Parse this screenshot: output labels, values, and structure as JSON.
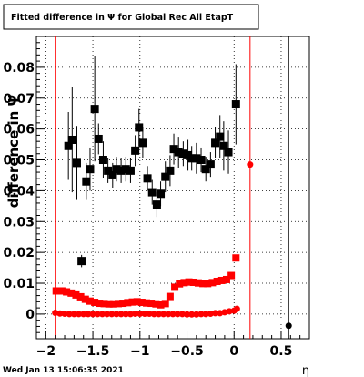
{
  "title": "Fitted difference in  Ψ  for Global Rec All EtapT",
  "timestamp": "Wed Jan 13 15:06:35 2021",
  "chart_data": {
    "type": "scatter",
    "xlabel": "η",
    "ylabel": "difference in Ψ",
    "xlim": [
      -2.1,
      0.8
    ],
    "ylim": [
      -0.008,
      0.09
    ],
    "grid": true,
    "legend": "none",
    "x_ticks": [
      {
        "v": -2,
        "label": "−2"
      },
      {
        "v": -1.5,
        "label": "−1.5"
      },
      {
        "v": -1,
        "label": "−1"
      },
      {
        "v": -0.5,
        "label": "−0.5"
      },
      {
        "v": 0,
        "label": "0"
      },
      {
        "v": 0.5,
        "label": "0.5"
      }
    ],
    "y_ticks": [
      {
        "v": 0,
        "label": "0"
      },
      {
        "v": 0.01,
        "label": "0.01"
      },
      {
        "v": 0.02,
        "label": "0.02"
      },
      {
        "v": 0.03,
        "label": "0.03"
      },
      {
        "v": 0.04,
        "label": "0.04"
      },
      {
        "v": 0.05,
        "label": "0.05"
      },
      {
        "v": 0.06,
        "label": "0.06"
      },
      {
        "v": 0.07,
        "label": "0.07"
      },
      {
        "v": 0.08,
        "label": "0.08"
      }
    ],
    "vertical_lines": [
      {
        "x": -1.9,
        "color": "#ff0000"
      },
      {
        "x": 0.17,
        "color": "#ff0000"
      },
      {
        "x": 0.58,
        "color": "#000000"
      }
    ],
    "series": [
      {
        "marker": "square",
        "color": "#000000",
        "size": 9,
        "points": [
          [
            -1.76,
            0.0545,
            0.011
          ],
          [
            -1.72,
            0.0565,
            0.017
          ],
          [
            -1.67,
            0.049,
            0.012
          ],
          [
            -1.62,
            0.0172,
            0.002
          ],
          [
            -1.57,
            0.043,
            0.006
          ],
          [
            -1.53,
            0.047,
            0.007
          ],
          [
            -1.48,
            0.0665,
            0.017
          ],
          [
            -1.44,
            0.0568,
            0.005
          ],
          [
            -1.39,
            0.05,
            0.006
          ],
          [
            -1.34,
            0.0465,
            0.004
          ],
          [
            -1.29,
            0.045,
            0.004
          ],
          [
            -1.25,
            0.047,
            0.004
          ],
          [
            -1.2,
            0.0465,
            0.004
          ],
          [
            -1.15,
            0.047,
            0.004
          ],
          [
            -1.1,
            0.0465,
            0.004
          ],
          [
            -1.05,
            0.053,
            0.005
          ],
          [
            -1.01,
            0.0605,
            0.006
          ],
          [
            -0.97,
            0.0555,
            0.005
          ],
          [
            -0.92,
            0.044,
            0.004
          ],
          [
            -0.87,
            0.0395,
            0.004
          ],
          [
            -0.82,
            0.0355,
            0.004
          ],
          [
            -0.78,
            0.039,
            0.004
          ],
          [
            -0.73,
            0.0445,
            0.005
          ],
          [
            -0.68,
            0.0465,
            0.005
          ],
          [
            -0.64,
            0.0535,
            0.005
          ],
          [
            -0.59,
            0.0525,
            0.005
          ],
          [
            -0.54,
            0.052,
            0.004
          ],
          [
            -0.49,
            0.0515,
            0.005
          ],
          [
            -0.45,
            0.0505,
            0.004
          ],
          [
            -0.4,
            0.0505,
            0.005
          ],
          [
            -0.35,
            0.05,
            0.004
          ],
          [
            -0.3,
            0.047,
            0.004
          ],
          [
            -0.25,
            0.0485,
            0.004
          ],
          [
            -0.2,
            0.0555,
            0.005
          ],
          [
            -0.15,
            0.0575,
            0.007
          ],
          [
            -0.11,
            0.0545,
            0.008
          ],
          [
            -0.06,
            0.0525,
            0.007
          ],
          [
            0.02,
            0.068,
            0.013
          ]
        ]
      },
      {
        "marker": "square",
        "color": "#ff0000",
        "size": 8,
        "points": [
          [
            -1.89,
            0.0075
          ],
          [
            -1.83,
            0.0075
          ],
          [
            -1.78,
            0.0072
          ],
          [
            -1.73,
            0.0068
          ],
          [
            -1.68,
            0.0062
          ],
          [
            -1.63,
            0.0056
          ],
          [
            -1.58,
            0.0048
          ],
          [
            -1.53,
            0.0042
          ],
          [
            -1.48,
            0.0038
          ],
          [
            -1.43,
            0.0035
          ],
          [
            -1.38,
            0.0034
          ],
          [
            -1.33,
            0.0033
          ],
          [
            -1.28,
            0.0033
          ],
          [
            -1.23,
            0.0034
          ],
          [
            -1.18,
            0.0035
          ],
          [
            -1.13,
            0.0037
          ],
          [
            -1.08,
            0.0039
          ],
          [
            -1.03,
            0.004
          ],
          [
            -0.98,
            0.0038
          ],
          [
            -0.93,
            0.0036
          ],
          [
            -0.88,
            0.0035
          ],
          [
            -0.83,
            0.0033
          ],
          [
            -0.78,
            0.003
          ],
          [
            -0.73,
            0.0034
          ],
          [
            -0.68,
            0.0057
          ],
          [
            -0.63,
            0.0087
          ],
          [
            -0.58,
            0.0098
          ],
          [
            -0.53,
            0.0102
          ],
          [
            -0.48,
            0.0104
          ],
          [
            -0.43,
            0.0103
          ],
          [
            -0.38,
            0.0101
          ],
          [
            -0.33,
            0.0099
          ],
          [
            -0.28,
            0.0099
          ],
          [
            -0.23,
            0.0102
          ],
          [
            -0.18,
            0.0106
          ],
          [
            -0.13,
            0.0109
          ],
          [
            -0.08,
            0.0112
          ],
          [
            -0.03,
            0.0125
          ],
          [
            0.02,
            0.0182
          ]
        ]
      },
      {
        "marker": "circle",
        "color": "#ff0000",
        "size": 7,
        "points": [
          [
            -1.9,
            0.0004
          ],
          [
            -1.85,
            0.0002
          ],
          [
            -1.8,
            0.0001
          ],
          [
            -1.75,
            0.0
          ],
          [
            -1.7,
            0.0
          ],
          [
            -1.65,
            0.0
          ],
          [
            -1.6,
            0.0
          ],
          [
            -1.55,
            0.0
          ],
          [
            -1.5,
            0.0
          ],
          [
            -1.45,
            0.0
          ],
          [
            -1.4,
            0.0
          ],
          [
            -1.35,
            0.0
          ],
          [
            -1.3,
            0.0
          ],
          [
            -1.25,
            0.0
          ],
          [
            -1.2,
            0.0
          ],
          [
            -1.15,
            0.0
          ],
          [
            -1.1,
            0.0
          ],
          [
            -1.05,
            0.0001
          ],
          [
            -1.0,
            0.0001
          ],
          [
            -0.95,
            0.0001
          ],
          [
            -0.9,
            0.0001
          ],
          [
            -0.85,
            0.0
          ],
          [
            -0.8,
            0.0
          ],
          [
            -0.75,
            0.0
          ],
          [
            -0.7,
            0.0
          ],
          [
            -0.65,
            0.0
          ],
          [
            -0.6,
            0.0
          ],
          [
            -0.55,
            0.0
          ],
          [
            -0.5,
            -0.0001
          ],
          [
            -0.45,
            -0.0001
          ],
          [
            -0.4,
            -0.0001
          ],
          [
            -0.35,
            0.0
          ],
          [
            -0.3,
            0.0
          ],
          [
            -0.25,
            0.0001
          ],
          [
            -0.2,
            0.0003
          ],
          [
            -0.15,
            0.0003
          ],
          [
            -0.1,
            0.0006
          ],
          [
            -0.05,
            0.0009
          ],
          [
            0.0,
            0.0011
          ],
          [
            0.03,
            0.0017
          ],
          [
            0.17,
            0.0485
          ]
        ]
      },
      {
        "marker": "circle",
        "color": "#000000",
        "size": 7,
        "points": [
          [
            0.58,
            -0.0038
          ]
        ]
      }
    ]
  }
}
